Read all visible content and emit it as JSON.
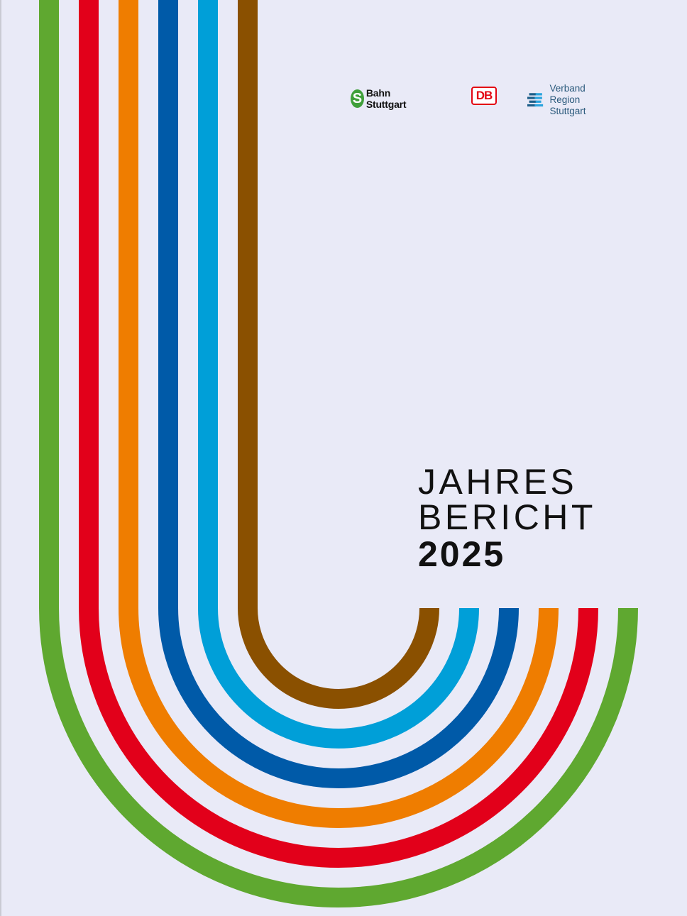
{
  "logos": {
    "sbahn": {
      "letter": "S",
      "name": "Bahn Stuttgart"
    },
    "db": "DB",
    "verband": {
      "line1": "Verband",
      "line2": "Region Stuttgart"
    }
  },
  "title": {
    "line1": "JAHRES",
    "line2": "BERICHT",
    "year": "2025"
  },
  "stripe_colors": [
    "#5fa830",
    "#e2001a",
    "#ef7d00",
    "#005aa8",
    "#009fd8",
    "#8a5000"
  ]
}
